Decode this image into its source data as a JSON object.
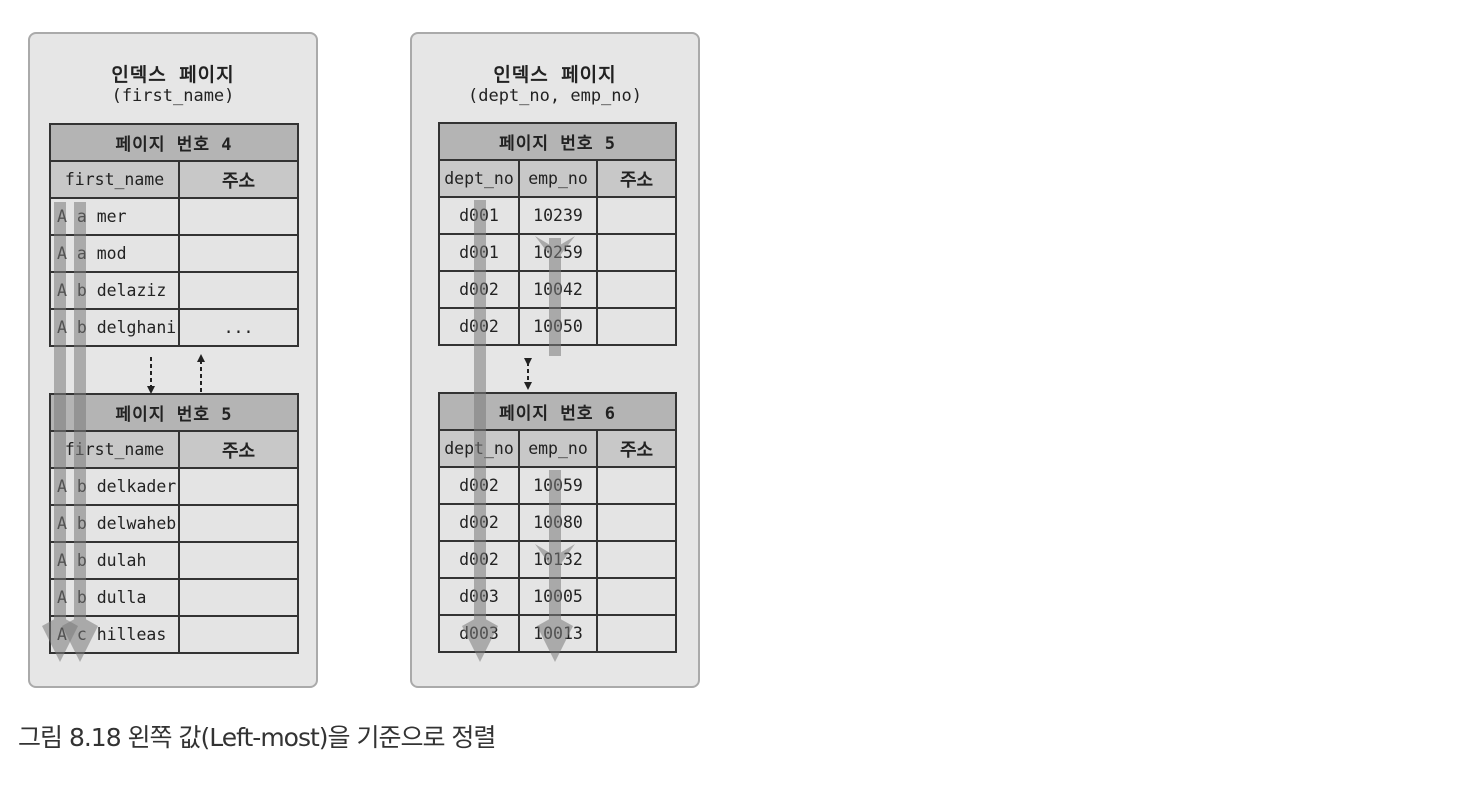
{
  "left_panel": {
    "title": "인덱스 페이지",
    "subtitle": "(first_name)",
    "pages": [
      {
        "header": "페이지 번호 4",
        "columns": [
          "first_name",
          "주소"
        ],
        "rows": [
          [
            "A a mer",
            ""
          ],
          [
            "A a mod",
            ""
          ],
          [
            "A b delaziz",
            ""
          ],
          [
            "A b delghani",
            "..."
          ]
        ]
      },
      {
        "header": "페이지 번호 5",
        "columns": [
          "first_name",
          "주소"
        ],
        "rows": [
          [
            "A b delkader",
            ""
          ],
          [
            "A b delwaheb",
            ""
          ],
          [
            "A b dulah",
            ""
          ],
          [
            "A b dulla",
            ""
          ],
          [
            "A c hilleas",
            ""
          ]
        ]
      }
    ]
  },
  "right_panel": {
    "title": "인덱스 페이지",
    "subtitle": "(dept_no, emp_no)",
    "pages": [
      {
        "header": "페이지 번호 5",
        "columns": [
          "dept_no",
          "emp_no",
          "주소"
        ],
        "rows": [
          [
            "d001",
            "10239",
            ""
          ],
          [
            "d001",
            "10259",
            ""
          ],
          [
            "d002",
            "10042",
            ""
          ],
          [
            "d002",
            "10050",
            ""
          ]
        ]
      },
      {
        "header": "페이지 번호 6",
        "columns": [
          "dept_no",
          "emp_no",
          "주소"
        ],
        "rows": [
          [
            "d002",
            "10059",
            ""
          ],
          [
            "d002",
            "10080",
            ""
          ],
          [
            "d002",
            "10132",
            ""
          ],
          [
            "d003",
            "10005",
            ""
          ],
          [
            "d003",
            "10013",
            ""
          ]
        ]
      }
    ]
  },
  "caption": "그림 8.18 왼쪽 값(Left-most)을 기준으로 정렬",
  "colors": {
    "panel_bg": "#e6e6e6",
    "header_bg": "#b4b4b4",
    "column_bg": "#c8c8c8",
    "row_bg": "#e4e4e4",
    "sort_arrow": "#8f8f8f"
  }
}
